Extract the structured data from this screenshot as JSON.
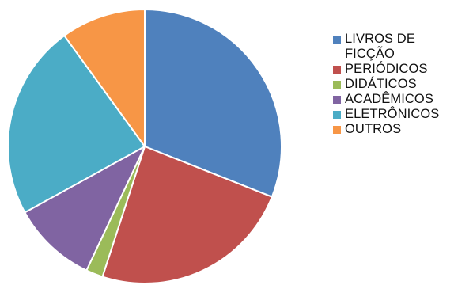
{
  "chart_data": {
    "type": "pie",
    "start_angle_deg": 0,
    "direction": "clockwise",
    "legend_position": "right",
    "slices": [
      {
        "label": "LIVROS DE FICÇÃO",
        "value": 31,
        "color": "#4F81BD"
      },
      {
        "label": "PERIÓDICOS",
        "value": 24,
        "color": "#C0504D"
      },
      {
        "label": "DIDÁTICOS",
        "value": 2,
        "color": "#9BBB59"
      },
      {
        "label": "ACADÊMICOS",
        "value": 10,
        "color": "#8064A2"
      },
      {
        "label": "ELETRÔNICOS",
        "value": 23,
        "color": "#4BACC6"
      },
      {
        "label": "OUTROS",
        "value": 10,
        "color": "#F79646"
      }
    ]
  }
}
